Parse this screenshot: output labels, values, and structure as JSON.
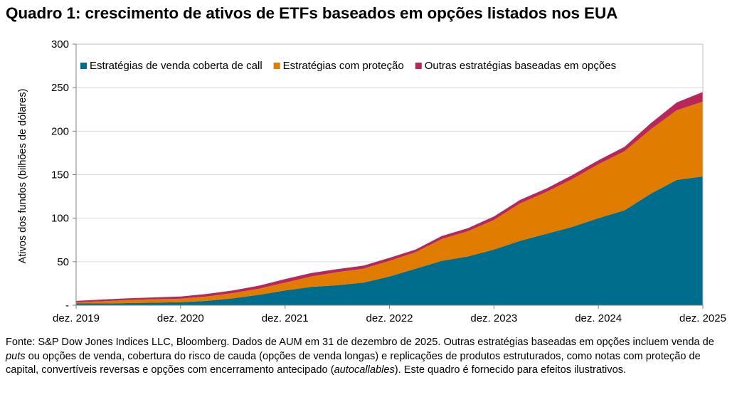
{
  "title": "Quadro 1: crescimento de ativos de ETFs baseados em opções listados nos EUA",
  "footnote": {
    "part1": "Fonte: S&P Dow Jones Indices LLC, Bloomberg. Dados de AUM em 31 de dezembro de 2025. Outras estratégias baseadas em opções incluem venda de ",
    "em1": "puts",
    "part2": " ou opções de venda, cobertura do risco de cauda (opções de venda longas) e replicações de produtos estruturados, como notas com proteção de capital, convertíveis reversas e opções com encerramento antecipado (",
    "em2": "autocallables",
    "part3": "). Este quadro é fornecido para efeitos ilustrativos."
  },
  "chart_data": {
    "type": "area",
    "stacked": true,
    "ylabel": "Ativos dos fundos (bilhões de dólares)",
    "ylim": [
      0,
      300
    ],
    "yticks": [
      0,
      50,
      100,
      150,
      200,
      250,
      300
    ],
    "ytick_labels": [
      "-",
      "50",
      "100",
      "150",
      "200",
      "250",
      "300"
    ],
    "xlim": [
      0,
      24
    ],
    "xticks": [
      0,
      4,
      8,
      12,
      16,
      20,
      24
    ],
    "xtick_labels": [
      "dez. 2019",
      "dez. 2020",
      "dez. 2021",
      "dez. 2022",
      "dez. 2023",
      "dez. 2024",
      "dez. 2025"
    ],
    "x": [
      "dez. 2019",
      "mar. 2020",
      "jun. 2020",
      "set. 2020",
      "dez. 2020",
      "mar. 2021",
      "jun. 2021",
      "set. 2021",
      "dez. 2021",
      "mar. 2022",
      "jun. 2022",
      "set. 2022",
      "dez. 2022",
      "mar. 2023",
      "jun. 2023",
      "set. 2023",
      "dez. 2023",
      "mar. 2024",
      "jun. 2024",
      "set. 2024",
      "dez. 2024",
      "mar. 2025",
      "jun. 2025",
      "set. 2025",
      "dez. 2025"
    ],
    "legend_position": "top-left",
    "grid": "horizontal",
    "series": [
      {
        "name": "Estratégias de venda coberta de call",
        "color": "#006D8C",
        "values": [
          2,
          2,
          2.5,
          3,
          3.5,
          5,
          8,
          12,
          17,
          21,
          23,
          26,
          33,
          42,
          51,
          56,
          64,
          74,
          82,
          90,
          100,
          109,
          128,
          144,
          148
        ]
      },
      {
        "name": "Estratégias com proteção",
        "color": "#E07C00",
        "values": [
          1.5,
          2.5,
          3.5,
          4,
          4,
          5,
          6,
          7,
          9,
          12,
          15,
          16,
          18,
          19,
          25,
          29,
          34,
          43,
          48,
          55,
          62,
          68,
          74,
          80,
          86
        ]
      },
      {
        "name": "Outras estratégias baseadas em opções",
        "color": "#B9265A",
        "values": [
          1.5,
          2,
          2,
          2,
          2.5,
          3,
          3,
          3.5,
          4,
          4,
          3.5,
          3.5,
          3.5,
          3,
          3.5,
          3.5,
          4,
          4,
          4,
          4.5,
          4.5,
          5,
          7,
          9,
          11
        ]
      }
    ]
  }
}
